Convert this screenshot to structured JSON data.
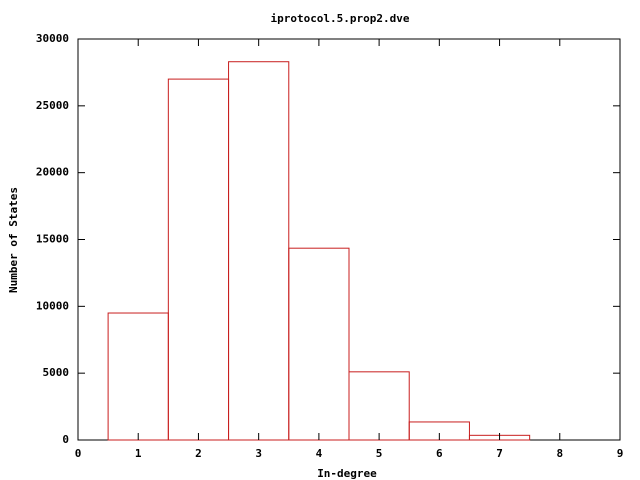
{
  "chart_data": {
    "type": "histogram",
    "title": "iprotocol.5.prop2.dve",
    "x_label": "In-degree",
    "y_label": "Number of States",
    "bins": [
      0.5,
      1.5,
      2.5,
      3.5,
      4.5,
      5.5,
      6.5,
      7.5
    ],
    "counts": [
      9500,
      27000,
      28300,
      14350,
      5100,
      1350,
      350
    ],
    "color": "#c81e1e",
    "xlim": [
      0,
      9
    ],
    "xticks": [
      0,
      1,
      2,
      3,
      4,
      5,
      6,
      7,
      8,
      9
    ],
    "ylim": [
      0,
      30000
    ],
    "yticks": [
      0,
      5000,
      10000,
      15000,
      20000,
      25000,
      30000
    ],
    "grid": false
  }
}
